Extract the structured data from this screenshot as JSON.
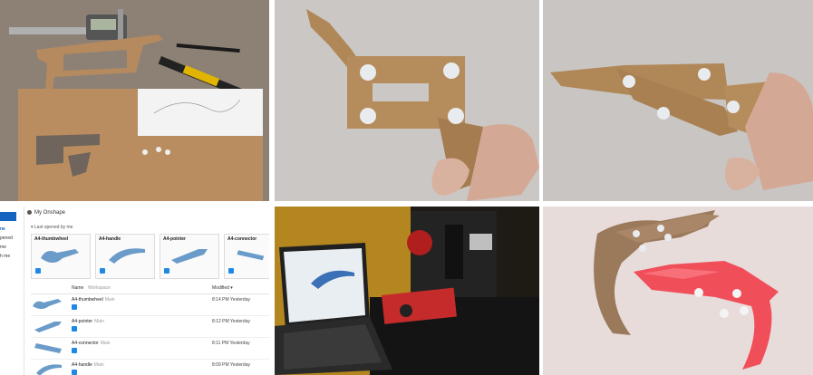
{
  "panels": {
    "workbench": {
      "label": "cardboard-parts-workbench"
    },
    "prototype_open": {
      "label": "cardboard-prototype-open"
    },
    "prototype_closed": {
      "label": "cardboard-prototype-closed"
    },
    "onshape": {
      "sidebar": {
        "new_label": "",
        "items": [
          "ne",
          "pened",
          "me",
          "h me"
        ]
      },
      "header_title": "My Onshape",
      "recent_label": "Last opened by me",
      "cards": [
        {
          "title": "A4-thumbwheel"
        },
        {
          "title": "A4-handle"
        },
        {
          "title": "A4-pointer"
        },
        {
          "title": "A4-connector"
        }
      ],
      "table": {
        "columns": {
          "name": "Name",
          "workspace": "Workspace",
          "modified": "Modified"
        },
        "rows": [
          {
            "name": "A4-thumbwheel",
            "owner": "Main",
            "modified": "8:14 PM Yesterday"
          },
          {
            "name": "A4-pointer",
            "owner": "Main",
            "modified": "8:12 PM Yesterday"
          },
          {
            "name": "A4-connector",
            "owner": "Main",
            "modified": "8:11 PM Yesterday"
          },
          {
            "name": "A4-handle",
            "owner": "Main",
            "modified": "8:09 PM Yesterday"
          }
        ]
      }
    },
    "printer_setup": {
      "label": "laptop-and-3d-printer"
    },
    "comparison": {
      "label": "cardboard-vs-printed-part"
    }
  }
}
